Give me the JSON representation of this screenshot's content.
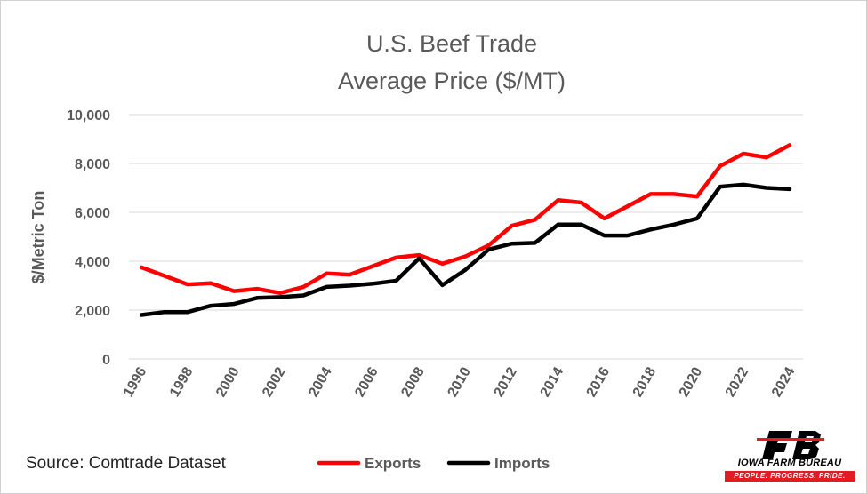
{
  "chart_data": {
    "type": "line",
    "title": [
      "U.S. Beef Trade",
      "Average Price ($/MT)"
    ],
    "ylabel": "$/Metric Ton",
    "xlabel": "",
    "x": [
      1996,
      1997,
      1998,
      1999,
      2000,
      2001,
      2002,
      2003,
      2004,
      2005,
      2006,
      2007,
      2008,
      2009,
      2010,
      2011,
      2012,
      2013,
      2014,
      2015,
      2016,
      2017,
      2018,
      2019,
      2020,
      2021,
      2022,
      2023,
      2024
    ],
    "xtick_labels": [
      "1996",
      "1998",
      "2000",
      "2002",
      "2004",
      "2006",
      "2008",
      "2010",
      "2012",
      "2014",
      "2016",
      "2018",
      "2020",
      "2022",
      "2024"
    ],
    "ylim": [
      0,
      10000
    ],
    "ytick_labels": [
      "0",
      "2,000",
      "4,000",
      "6,000",
      "8,000",
      "10,000"
    ],
    "grid": true,
    "legend_position": "bottom",
    "series": [
      {
        "name": "Exports",
        "color": "#ff0000",
        "values": [
          3750,
          3400,
          3050,
          3100,
          2780,
          2870,
          2700,
          2950,
          3500,
          3450,
          3800,
          4150,
          4250,
          3900,
          4200,
          4650,
          5450,
          5700,
          6500,
          6400,
          5750,
          6250,
          6750,
          6750,
          6650,
          7900,
          8400,
          8250,
          8750
        ]
      },
      {
        "name": "Imports",
        "color": "#000000",
        "values": [
          1800,
          1920,
          1920,
          2180,
          2250,
          2500,
          2530,
          2600,
          2950,
          3000,
          3080,
          3200,
          4120,
          3020,
          3650,
          4480,
          4720,
          4750,
          5500,
          5500,
          5050,
          5050,
          5300,
          5500,
          5750,
          7050,
          7130,
          7000,
          6950
        ]
      }
    ]
  },
  "source_text": "Source: Comtrade Dataset",
  "logo": {
    "mark_text": "FB",
    "name": "IOWA FARM BUREAU",
    "tagline": "PEOPLE. PROGRESS. PRIDE."
  }
}
